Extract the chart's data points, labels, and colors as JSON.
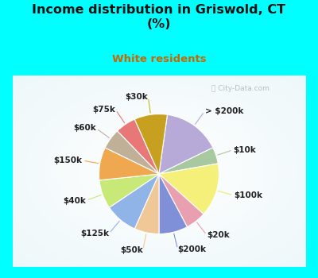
{
  "title": "Income distribution in Griswold, CT\n(%)",
  "subtitle": "White residents",
  "title_color": "#111111",
  "subtitle_color": "#cc6600",
  "background_cyan": "#00ffff",
  "labels": [
    "> $200k",
    "$10k",
    "$100k",
    "$20k",
    "$200k",
    "$50k",
    "$125k",
    "$40k",
    "$150k",
    "$60k",
    "$75k",
    "$30k"
  ],
  "values": [
    14,
    4,
    13,
    5,
    7,
    6,
    8,
    7,
    8,
    5,
    5,
    8
  ],
  "colors": [
    "#b8aad8",
    "#a8c8a0",
    "#f5f07a",
    "#e8a0b0",
    "#8090d8",
    "#f0c898",
    "#90b4e8",
    "#c8e878",
    "#f0a850",
    "#c0b098",
    "#e87878",
    "#c8a020"
  ],
  "startangle": 82,
  "label_fontsize": 7.5,
  "line_colors": [
    "#b8aad8",
    "#a8c8a0",
    "#f0e870",
    "#e8a0b0",
    "#8090d8",
    "#f0c898",
    "#90b4e8",
    "#c8e878",
    "#f0a850",
    "#c0b098",
    "#e87878",
    "#c8b820"
  ]
}
